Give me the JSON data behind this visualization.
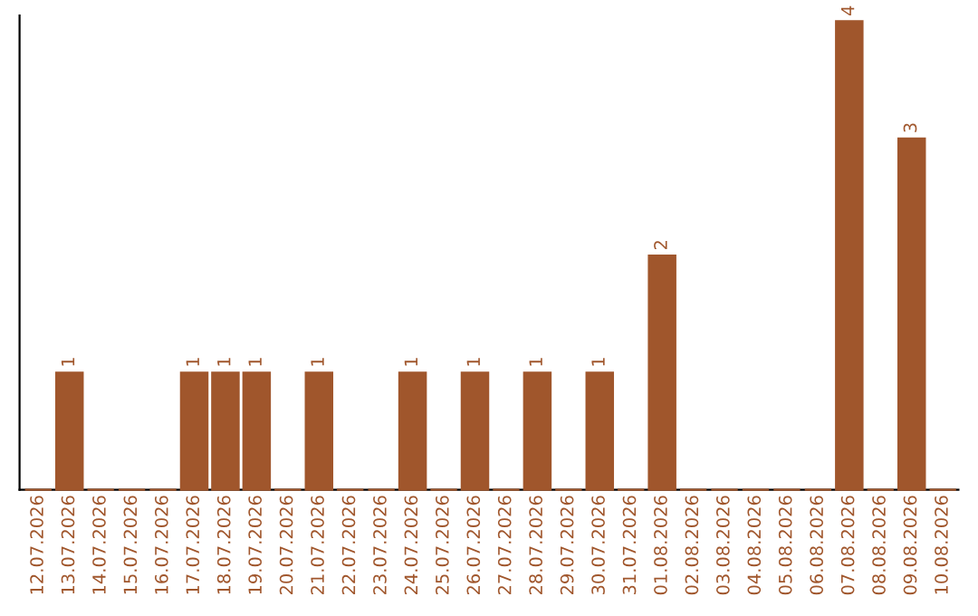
{
  "chart_data": {
    "type": "bar",
    "categories": [
      "12.07.2026",
      "13.07.2026",
      "14.07.2026",
      "15.07.2026",
      "16.07.2026",
      "17.07.2026",
      "18.07.2026",
      "19.07.2026",
      "20.07.2026",
      "21.07.2026",
      "22.07.2026",
      "23.07.2026",
      "24.07.2026",
      "25.07.2026",
      "26.07.2026",
      "27.07.2026",
      "28.07.2026",
      "29.07.2026",
      "30.07.2026",
      "31.07.2026",
      "01.08.2026",
      "02.08.2026",
      "03.08.2026",
      "04.08.2026",
      "05.08.2026",
      "06.08.2026",
      "07.08.2026",
      "08.08.2026",
      "09.08.2026",
      "10.08.2026"
    ],
    "values": [
      0,
      1,
      0,
      0,
      0,
      1,
      1,
      1,
      0,
      1,
      0,
      0,
      1,
      0,
      1,
      0,
      1,
      0,
      1,
      0,
      2,
      0,
      0,
      0,
      0,
      0,
      4,
      0,
      3,
      0
    ],
    "value_labels": [
      null,
      "1",
      null,
      null,
      null,
      "1",
      "1",
      "1",
      null,
      "1",
      null,
      null,
      "1",
      null,
      "1",
      null,
      "1",
      null,
      "1",
      null,
      "2",
      null,
      null,
      null,
      null,
      null,
      "4",
      null,
      "3",
      null
    ],
    "color": "#a0562c",
    "tick_labels": "x",
    "grid": false,
    "legend": false
  }
}
